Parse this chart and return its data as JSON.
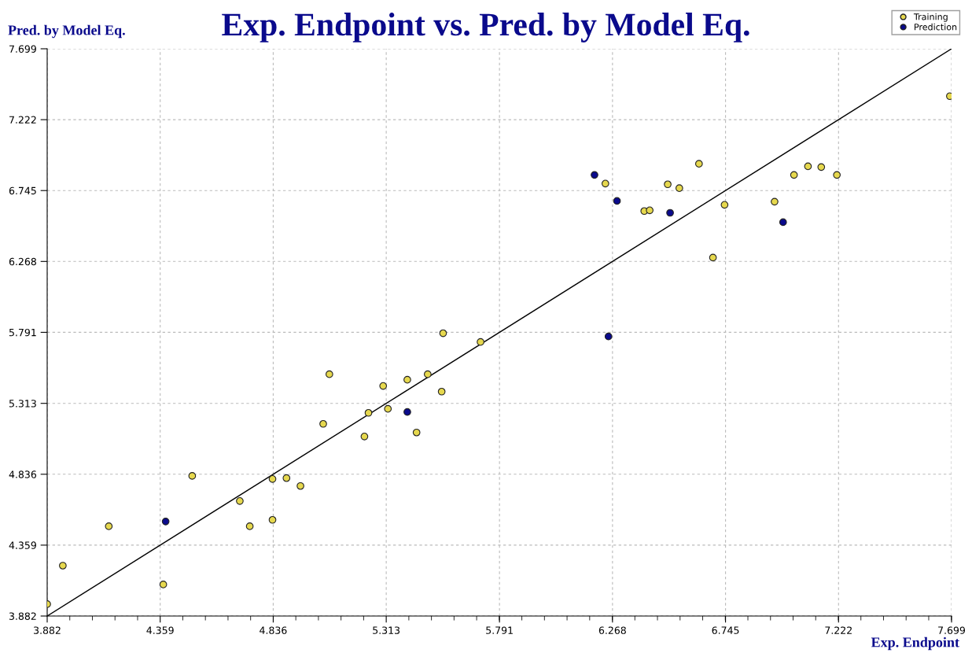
{
  "chart_data": {
    "type": "scatter",
    "title": "Exp. Endpoint vs. Pred. by Model Eq.",
    "xlabel": "Exp. Endpoint",
    "ylabel": "Pred. by Model Eq.",
    "xlim": [
      3.882,
      7.699
    ],
    "ylim": [
      3.882,
      7.699
    ],
    "xticks": [
      3.882,
      4.359,
      4.836,
      5.313,
      5.791,
      6.268,
      6.745,
      7.222,
      7.699
    ],
    "yticks": [
      3.882,
      4.359,
      4.836,
      5.313,
      5.791,
      6.268,
      6.745,
      7.222,
      7.699
    ],
    "grid": true,
    "legend": "top right",
    "marker": "circle",
    "series": [
      {
        "name": "Training",
        "color": "#e6d84e",
        "x": [
          3.882,
          3.948,
          4.142,
          4.372,
          4.494,
          4.695,
          4.737,
          4.833,
          4.833,
          4.892,
          4.951,
          5.047,
          5.073,
          5.221,
          5.238,
          5.3,
          5.32,
          5.402,
          5.441,
          5.488,
          5.547,
          5.553,
          5.711,
          6.238,
          6.402,
          6.425,
          6.501,
          6.55,
          6.633,
          6.692,
          6.741,
          6.952,
          7.034,
          7.093,
          7.149,
          7.215,
          7.692
        ],
        "values": [
          3.962,
          4.221,
          4.486,
          4.094,
          4.825,
          4.656,
          4.486,
          4.804,
          4.529,
          4.81,
          4.757,
          5.175,
          5.509,
          5.09,
          5.249,
          5.43,
          5.276,
          5.472,
          5.117,
          5.509,
          5.392,
          5.785,
          5.726,
          6.792,
          6.607,
          6.612,
          6.787,
          6.761,
          6.925,
          6.294,
          6.649,
          6.67,
          6.85,
          6.908,
          6.903,
          6.85,
          7.38
        ]
      },
      {
        "name": "Prediction",
        "color": "#0a0a8c",
        "x": [
          4.382,
          5.402,
          6.192,
          6.287,
          6.511,
          6.988,
          6.251
        ],
        "values": [
          4.518,
          5.255,
          6.85,
          6.675,
          6.595,
          6.532,
          5.763
        ]
      },
      {
        "type": "line",
        "color": "#000000",
        "marker": "none",
        "x": [
          3.882,
          7.699
        ],
        "values": [
          3.882,
          7.699
        ]
      }
    ]
  }
}
